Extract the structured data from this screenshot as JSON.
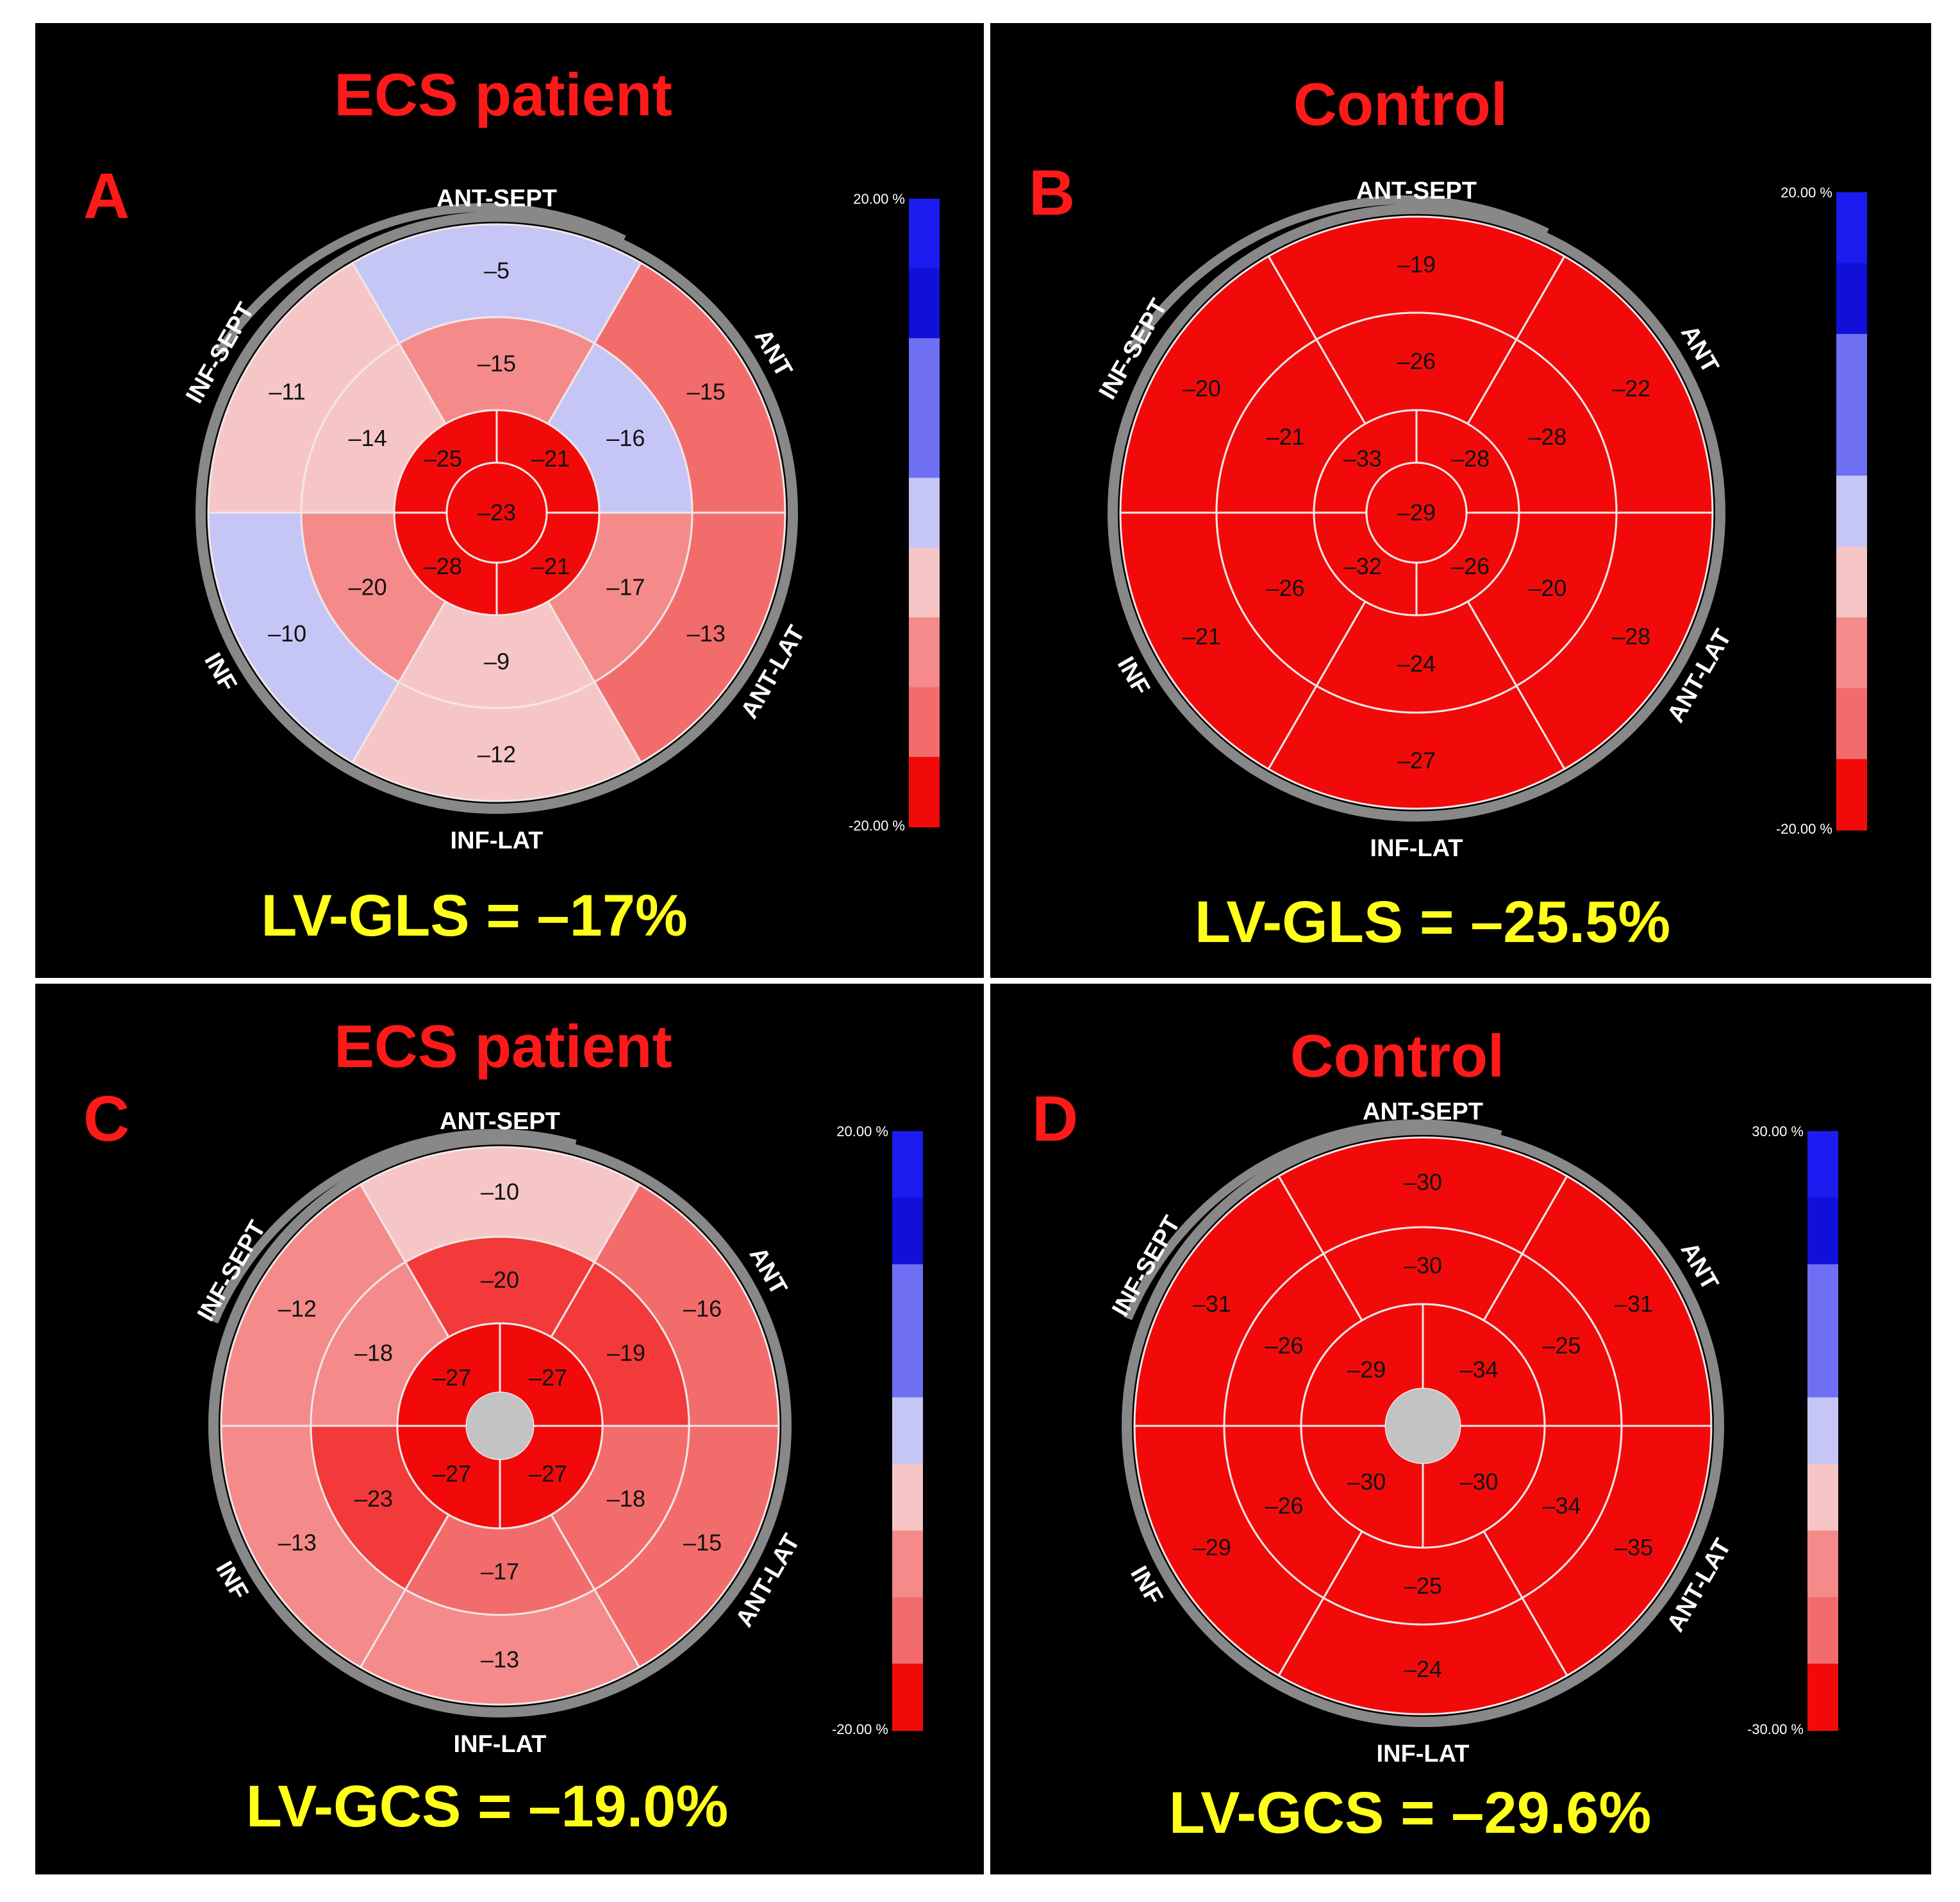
{
  "palette": {
    "lightblue": "#c6c6f6",
    "midblue": "#6f6ff3",
    "blue": "#1c1cf0",
    "darkblue": "#1010d8",
    "pale": "#f6c6c6",
    "pink": "#f58a8a",
    "salmon": "#f36c6c",
    "red1": "#f23a3a",
    "red": "#f20a0a",
    "ring": "#888888",
    "apex": "#c3c3c3",
    "title": "#ff1a1a",
    "metric": "#ffff1a"
  },
  "panels": [
    {
      "id": "A",
      "letter": "A",
      "title": "ECS patient",
      "metric": "LV-GLS = –17%",
      "directions": {
        "top": "ANT-SEPT",
        "bottom": "INF-LAT",
        "left_top": "INF-SEPT",
        "left_bottom": "INF",
        "right_top": "ANT",
        "right_bottom": "ANT-LAT"
      },
      "scale": {
        "max": "20.00 %",
        "min": "-20.00 %"
      },
      "apex_value": "–23",
      "segments": [
        {
          "id": "basal-anteroseptal",
          "value": "–5",
          "fill": "lightblue"
        },
        {
          "id": "basal-anterior",
          "value": "–15",
          "fill": "salmon"
        },
        {
          "id": "basal-anterolateral",
          "value": "–13",
          "fill": "salmon"
        },
        {
          "id": "basal-inferolateral",
          "value": "–12",
          "fill": "pale"
        },
        {
          "id": "basal-inferior",
          "value": "–10",
          "fill": "lightblue"
        },
        {
          "id": "basal-inferoseptal",
          "value": "–11",
          "fill": "pale"
        },
        {
          "id": "mid-anteroseptal",
          "value": "–15",
          "fill": "pink"
        },
        {
          "id": "mid-anterior",
          "value": "–16",
          "fill": "lightblue"
        },
        {
          "id": "mid-anterolateral",
          "value": "–17",
          "fill": "pink"
        },
        {
          "id": "mid-inferolateral",
          "value": "–9",
          "fill": "pale"
        },
        {
          "id": "mid-inferior",
          "value": "–20",
          "fill": "pink"
        },
        {
          "id": "mid-inferoseptal",
          "value": "–14",
          "fill": "pale"
        },
        {
          "id": "apical-anterior",
          "value": "–21",
          "fill": "red"
        },
        {
          "id": "apical-lateral",
          "value": "–21",
          "fill": "red"
        },
        {
          "id": "apical-inferior",
          "value": "–28",
          "fill": "red"
        },
        {
          "id": "apical-septal",
          "value": "–25",
          "fill": "red"
        }
      ]
    },
    {
      "id": "B",
      "letter": "B",
      "title": "Control",
      "metric": "LV-GLS = –25.5%",
      "directions": {
        "top": "ANT-SEPT",
        "bottom": "INF-LAT",
        "left_top": "INF-SEPT",
        "left_bottom": "INF",
        "right_top": "ANT",
        "right_bottom": "ANT-LAT"
      },
      "scale": {
        "max": "20.00 %",
        "min": "-20.00 %"
      },
      "apex_value": "–29",
      "segments": [
        {
          "id": "basal-anteroseptal",
          "value": "–19",
          "fill": "red"
        },
        {
          "id": "basal-anterior",
          "value": "–22",
          "fill": "red"
        },
        {
          "id": "basal-anterolateral",
          "value": "–28",
          "fill": "red"
        },
        {
          "id": "basal-inferolateral",
          "value": "–27",
          "fill": "red"
        },
        {
          "id": "basal-inferior",
          "value": "–21",
          "fill": "red"
        },
        {
          "id": "basal-inferoseptal",
          "value": "–20",
          "fill": "red"
        },
        {
          "id": "mid-anteroseptal",
          "value": "–26",
          "fill": "red"
        },
        {
          "id": "mid-anterior",
          "value": "–28",
          "fill": "red"
        },
        {
          "id": "mid-anterolateral",
          "value": "–20",
          "fill": "red"
        },
        {
          "id": "mid-inferolateral",
          "value": "–24",
          "fill": "red"
        },
        {
          "id": "mid-inferior",
          "value": "–26",
          "fill": "red"
        },
        {
          "id": "mid-inferoseptal",
          "value": "–21",
          "fill": "red"
        },
        {
          "id": "apical-anterior",
          "value": "–28",
          "fill": "red"
        },
        {
          "id": "apical-lateral",
          "value": "–26",
          "fill": "red"
        },
        {
          "id": "apical-inferior",
          "value": "–32",
          "fill": "red"
        },
        {
          "id": "apical-septal",
          "value": "–33",
          "fill": "red"
        }
      ]
    },
    {
      "id": "C",
      "letter": "C",
      "title": "ECS patient",
      "metric": "LV-GCS = –19.0%",
      "directions": {
        "top": "ANT-SEPT",
        "bottom": "INF-LAT",
        "left_top": "INF-SEPT",
        "left_bottom": "INF",
        "right_top": "ANT",
        "right_bottom": "ANT-LAT"
      },
      "scale": {
        "max": "20.00 %",
        "min": "-20.00 %"
      },
      "apex_value": null,
      "segments": [
        {
          "id": "basal-anteroseptal",
          "value": "–10",
          "fill": "pale"
        },
        {
          "id": "basal-anterior",
          "value": "–16",
          "fill": "salmon"
        },
        {
          "id": "basal-anterolateral",
          "value": "–15",
          "fill": "salmon"
        },
        {
          "id": "basal-inferolateral",
          "value": "–13",
          "fill": "pink"
        },
        {
          "id": "basal-inferior",
          "value": "–13",
          "fill": "pink"
        },
        {
          "id": "basal-inferoseptal",
          "value": "–12",
          "fill": "pink"
        },
        {
          "id": "mid-anteroseptal",
          "value": "–20",
          "fill": "red1"
        },
        {
          "id": "mid-anterior",
          "value": "–19",
          "fill": "red1"
        },
        {
          "id": "mid-anterolateral",
          "value": "–18",
          "fill": "salmon"
        },
        {
          "id": "mid-inferolateral",
          "value": "–17",
          "fill": "salmon"
        },
        {
          "id": "mid-inferior",
          "value": "–23",
          "fill": "red1"
        },
        {
          "id": "mid-inferoseptal",
          "value": "–18",
          "fill": "pink"
        },
        {
          "id": "apical-anterior",
          "value": "–27",
          "fill": "red"
        },
        {
          "id": "apical-lateral",
          "value": "–27",
          "fill": "red"
        },
        {
          "id": "apical-inferior",
          "value": "–27",
          "fill": "red"
        },
        {
          "id": "apical-septal",
          "value": "–27",
          "fill": "red"
        }
      ]
    },
    {
      "id": "D",
      "letter": "D",
      "title": "Control",
      "metric": "LV-GCS = –29.6%",
      "directions": {
        "top": "ANT-SEPT",
        "bottom": "INF-LAT",
        "left_top": "INF-SEPT",
        "left_bottom": "INF",
        "right_top": "ANT",
        "right_bottom": "ANT-LAT"
      },
      "scale": {
        "max": "30.00 %",
        "min": "-30.00 %"
      },
      "apex_value": null,
      "segments": [
        {
          "id": "basal-anteroseptal",
          "value": "–30",
          "fill": "red"
        },
        {
          "id": "basal-anterior",
          "value": "–31",
          "fill": "red"
        },
        {
          "id": "basal-anterolateral",
          "value": "–35",
          "fill": "red"
        },
        {
          "id": "basal-inferolateral",
          "value": "–24",
          "fill": "red"
        },
        {
          "id": "basal-inferior",
          "value": "–29",
          "fill": "red"
        },
        {
          "id": "basal-inferoseptal",
          "value": "–31",
          "fill": "red"
        },
        {
          "id": "mid-anteroseptal",
          "value": "–30",
          "fill": "red"
        },
        {
          "id": "mid-anterior",
          "value": "–25",
          "fill": "red"
        },
        {
          "id": "mid-anterolateral",
          "value": "–34",
          "fill": "red"
        },
        {
          "id": "mid-inferolateral",
          "value": "–25",
          "fill": "red"
        },
        {
          "id": "mid-inferior",
          "value": "–26",
          "fill": "red"
        },
        {
          "id": "mid-inferoseptal",
          "value": "–26",
          "fill": "red"
        },
        {
          "id": "apical-anterior",
          "value": "–34",
          "fill": "red"
        },
        {
          "id": "apical-lateral",
          "value": "–30",
          "fill": "red"
        },
        {
          "id": "apical-inferior",
          "value": "–30",
          "fill": "red"
        },
        {
          "id": "apical-septal",
          "value": "–29",
          "fill": "red"
        }
      ]
    }
  ]
}
